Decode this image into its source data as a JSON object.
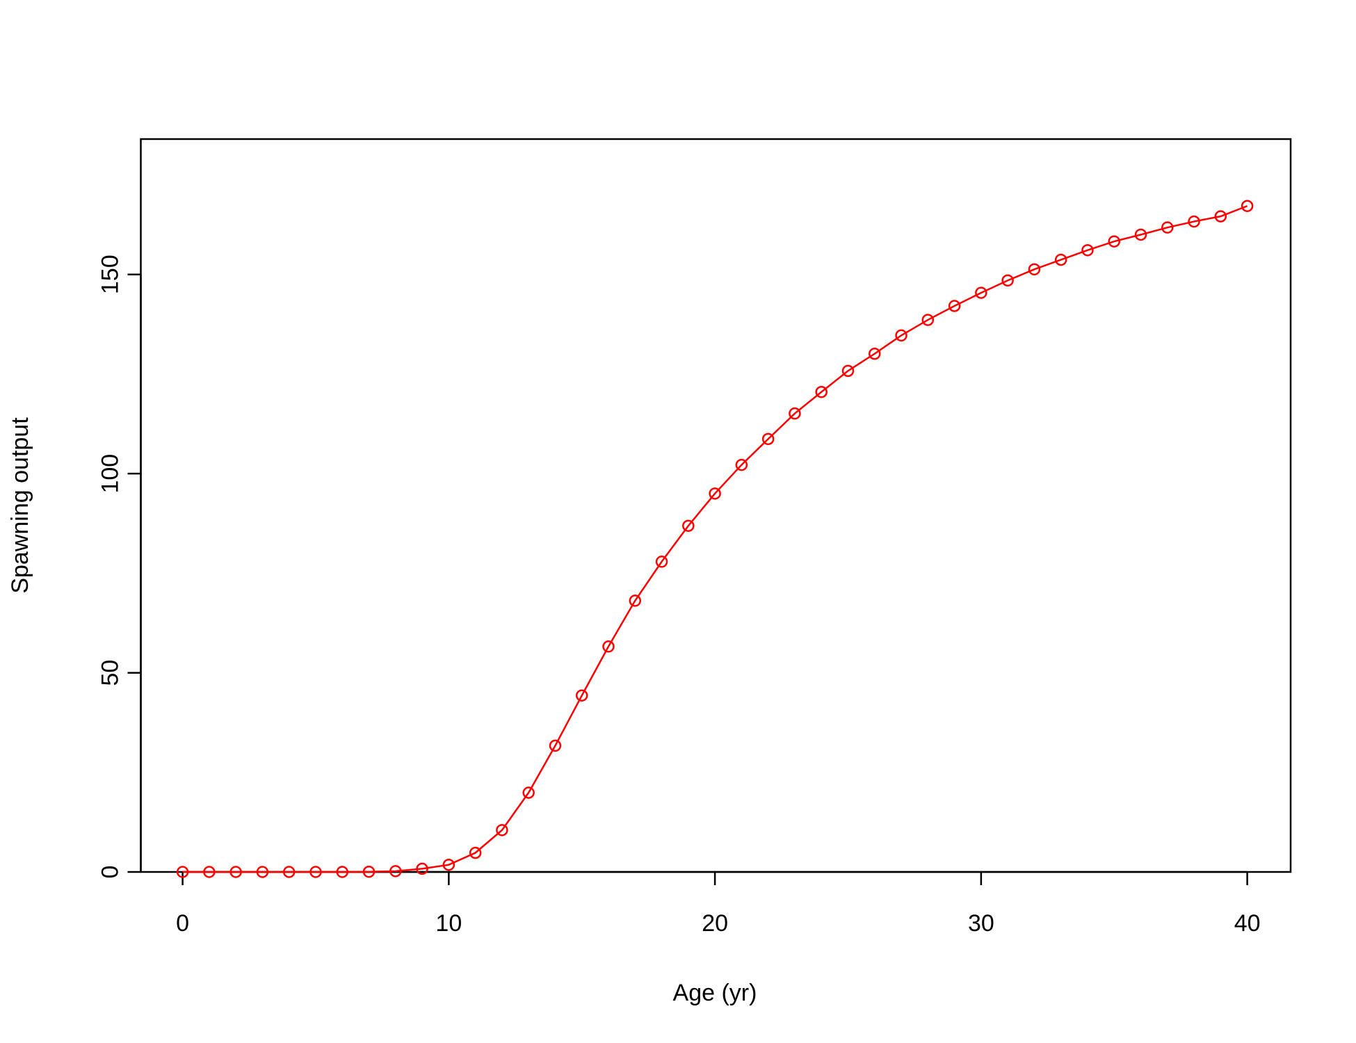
{
  "chart_data": {
    "type": "line",
    "x_label": "Age (yr)",
    "y_label": "Spawning output",
    "x": [
      0,
      1,
      2,
      3,
      4,
      5,
      6,
      7,
      8,
      9,
      10,
      11,
      12,
      13,
      14,
      15,
      16,
      17,
      18,
      19,
      20,
      21,
      22,
      23,
      24,
      25,
      26,
      27,
      28,
      29,
      30,
      31,
      32,
      33,
      34,
      35,
      36,
      37,
      38,
      39,
      40
    ],
    "series": [
      {
        "color": "#ff0000",
        "values": [
          0,
          0,
          0,
          0,
          0,
          0,
          0,
          0.05,
          0.2,
          0.8,
          1.8,
          4.8,
          10.5,
          19.9,
          31.7,
          44.3,
          56.6,
          68.1,
          77.9,
          86.9,
          95.0,
          102.2,
          108.7,
          115.1,
          120.5,
          125.8,
          130.1,
          134.7,
          138.6,
          142.1,
          145.4,
          148.5,
          151.3,
          153.7,
          156.1,
          158.3,
          160.0,
          161.8,
          163.3,
          164.6,
          167.2
        ]
      }
    ],
    "xlim": [
      -1.57,
      41.63
    ],
    "ylim": [
      0,
      184
    ],
    "xticks": [
      0,
      10,
      20,
      30,
      40
    ],
    "yticks": [
      0,
      50,
      100,
      150
    ],
    "markers": true
  }
}
